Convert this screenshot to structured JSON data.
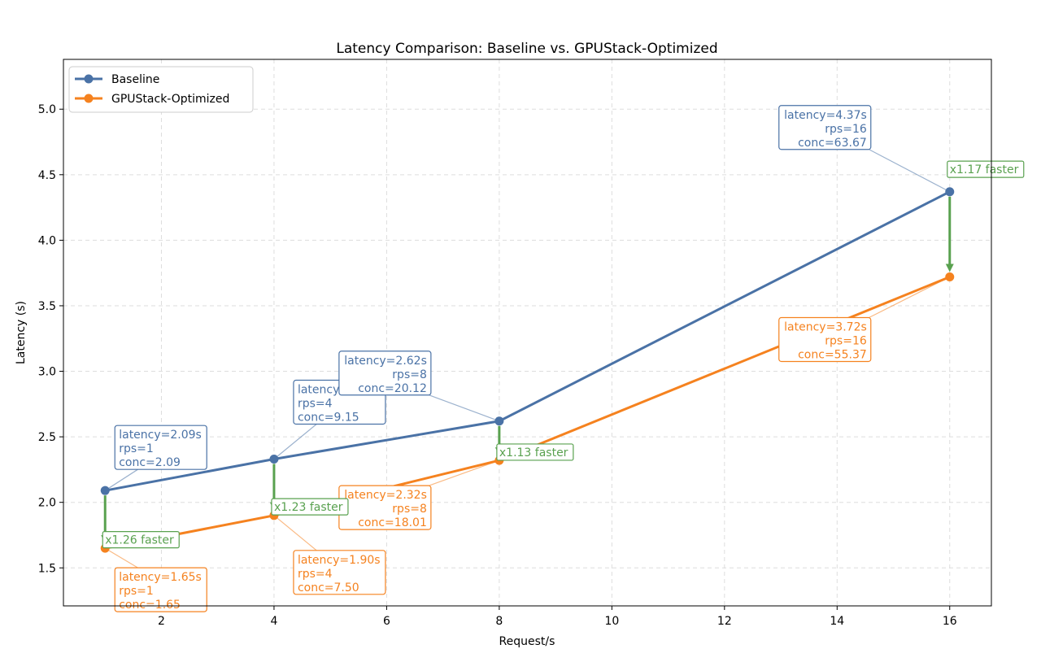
{
  "chart_data": {
    "type": "line",
    "title": "Latency Comparison: Baseline vs. GPUStack-Optimized",
    "xlabel": "Request/s",
    "ylabel": "Latency (s)",
    "xlim": [
      0.26,
      16.74
    ],
    "ylim": [
      1.21,
      5.38
    ],
    "xticks": [
      2,
      4,
      6,
      8,
      10,
      12,
      14,
      16
    ],
    "yticks": [
      1.5,
      2.0,
      2.5,
      3.0,
      3.5,
      4.0,
      4.5,
      5.0
    ],
    "grid": true,
    "legend_position": "top-left",
    "x": [
      1,
      4,
      8,
      16
    ],
    "series": [
      {
        "name": "Baseline",
        "color": "#4a72a6",
        "values": [
          2.09,
          2.33,
          2.62,
          4.37
        ],
        "annotations": [
          [
            "latency=2.09s",
            "rps=1",
            "conc=2.09"
          ],
          [
            "latency=2.33s",
            "rps=4",
            "conc=9.15"
          ],
          [
            "latency=2.62s",
            "rps=8",
            "conc=20.12"
          ],
          [
            "latency=4.37s",
            "rps=16",
            "conc=63.67"
          ]
        ]
      },
      {
        "name": "GPUStack-Optimized",
        "color": "#f5821f",
        "values": [
          1.65,
          1.9,
          2.32,
          3.72
        ],
        "annotations": [
          [
            "latency=1.65s",
            "rps=1",
            "conc=1.65"
          ],
          [
            "latency=1.90s",
            "rps=4",
            "conc=7.50"
          ],
          [
            "latency=2.32s",
            "rps=8",
            "conc=18.01"
          ],
          [
            "latency=3.72s",
            "rps=16",
            "conc=55.37"
          ]
        ]
      }
    ],
    "speedup": {
      "color": "#59a14f",
      "labels": [
        "x1.26 faster",
        "x1.23 faster",
        "x1.13 faster",
        "x1.17 faster"
      ]
    }
  }
}
